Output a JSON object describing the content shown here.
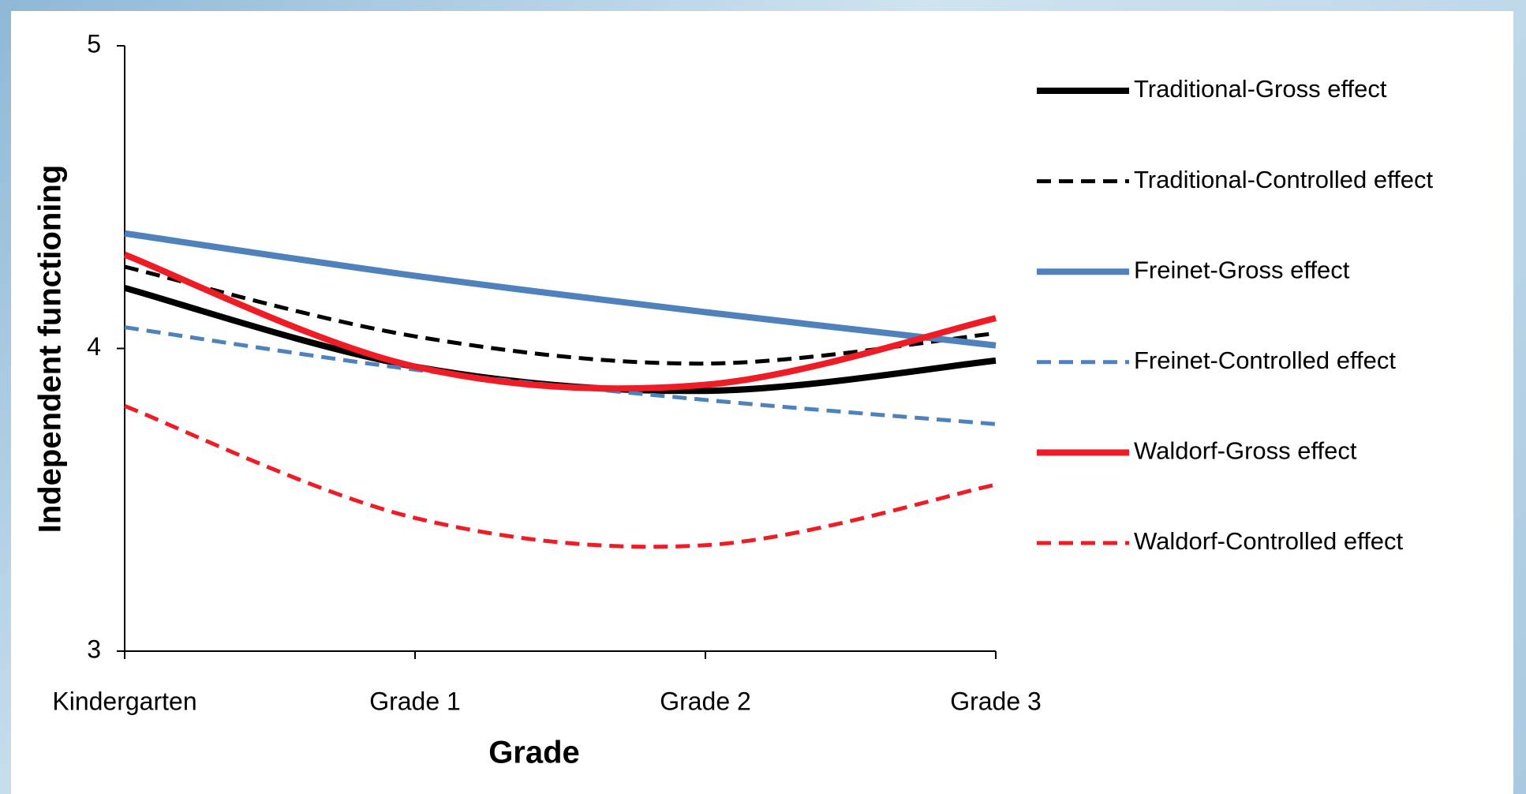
{
  "chart_data": {
    "type": "line",
    "x_label": "Grade",
    "y_label": "Independent functioning",
    "categories": [
      "Kindergarten",
      "Grade 1",
      "Grade 2",
      "Grade 3"
    ],
    "ylim": [
      3,
      5
    ],
    "yticks": [
      3,
      4,
      5
    ],
    "grid": false,
    "legend": "right",
    "series": [
      {
        "name": "Traditional-Gross effect",
        "color": "#000000",
        "line_style": "solid",
        "values": [
          4.2,
          3.94,
          3.86,
          3.96
        ]
      },
      {
        "name": "Traditional-Controlled effect",
        "color": "#000000",
        "line_style": "dashed",
        "values": [
          4.27,
          4.04,
          3.95,
          4.05
        ]
      },
      {
        "name": "Freinet-Gross effect",
        "color": "#4f81bd",
        "line_style": "solid",
        "values": [
          4.38,
          4.24,
          4.12,
          4.01
        ]
      },
      {
        "name": "Freinet-Controlled effect",
        "color": "#4f81bd",
        "line_style": "dashed",
        "values": [
          4.07,
          3.93,
          3.83,
          3.75
        ]
      },
      {
        "name": "Waldorf-Gross effect",
        "color": "#ee1c25",
        "line_style": "solid",
        "values": [
          4.31,
          3.94,
          3.88,
          4.1
        ]
      },
      {
        "name": "Waldorf-Controlled effect",
        "color": "#ee1c25",
        "line_style": "dashed",
        "values": [
          3.81,
          3.44,
          3.35,
          3.55
        ]
      }
    ]
  }
}
